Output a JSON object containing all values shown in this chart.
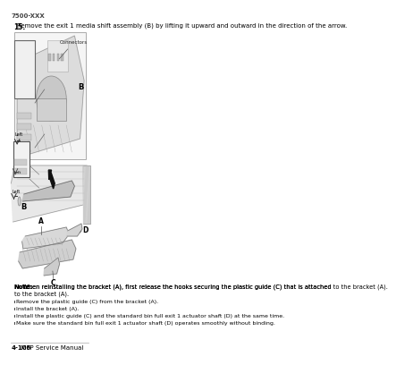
{
  "header_text": "7500-XXX",
  "step_number": "15.",
  "step_text": "Remove the exit 1 media shift assembly (B) by lifting it upward and outward in the direction of the arrow.",
  "note_bold": "Note:",
  "note_text": "  When reinstalling the bracket (A), first release the hooks securing the plastic guide (C) that is attached to the bracket (A).",
  "bullets": [
    "Remove the plastic guide (C) from the bracket (A).",
    "Install the bracket (A).",
    "Install the plastic guide (C) and the standard bin full exit 1 actuator shaft (D) at the same time.",
    "Make sure the standard bin full exit 1 actuator shaft (D) operates smoothly without binding."
  ],
  "footer_bold": "4-106",
  "footer_text": "  MFP Service Manual",
  "bg_color": "#ffffff",
  "text_color": "#000000",
  "diagram_line_color": "#888888",
  "diagram_fill_color": "#e0e0e0"
}
